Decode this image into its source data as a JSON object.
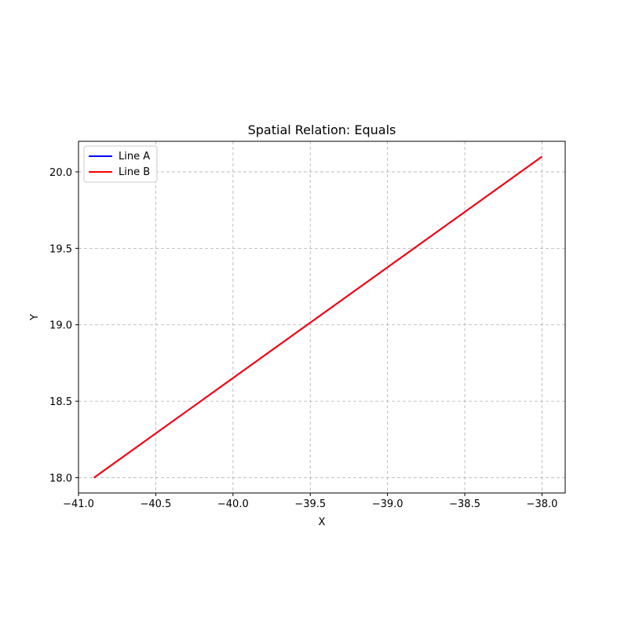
{
  "chart_data": {
    "type": "line",
    "title": "Spatial Relation: Equals",
    "xlabel": "X",
    "ylabel": "Y",
    "xlim": [
      -41.0,
      -37.85
    ],
    "ylim": [
      17.9,
      20.2
    ],
    "xticks": [
      -41.0,
      -40.5,
      -40.0,
      -39.5,
      -39.0,
      -38.5,
      -38.0
    ],
    "xtick_labels": [
      "−41.0",
      "−40.5",
      "−40.0",
      "−39.5",
      "−39.0",
      "−38.5",
      "−38.0"
    ],
    "yticks": [
      18.0,
      18.5,
      19.0,
      19.5,
      20.0
    ],
    "ytick_labels": [
      "18.0",
      "18.5",
      "19.0",
      "19.5",
      "20.0"
    ],
    "grid": true,
    "legend_position": "top-left",
    "series": [
      {
        "name": "Line A",
        "color": "#0000ff",
        "x": [
          -40.9,
          -38.0
        ],
        "y": [
          18.0,
          20.1
        ]
      },
      {
        "name": "Line B",
        "color": "#ff0000",
        "x": [
          -40.9,
          -38.0
        ],
        "y": [
          18.0,
          20.1
        ]
      }
    ]
  }
}
